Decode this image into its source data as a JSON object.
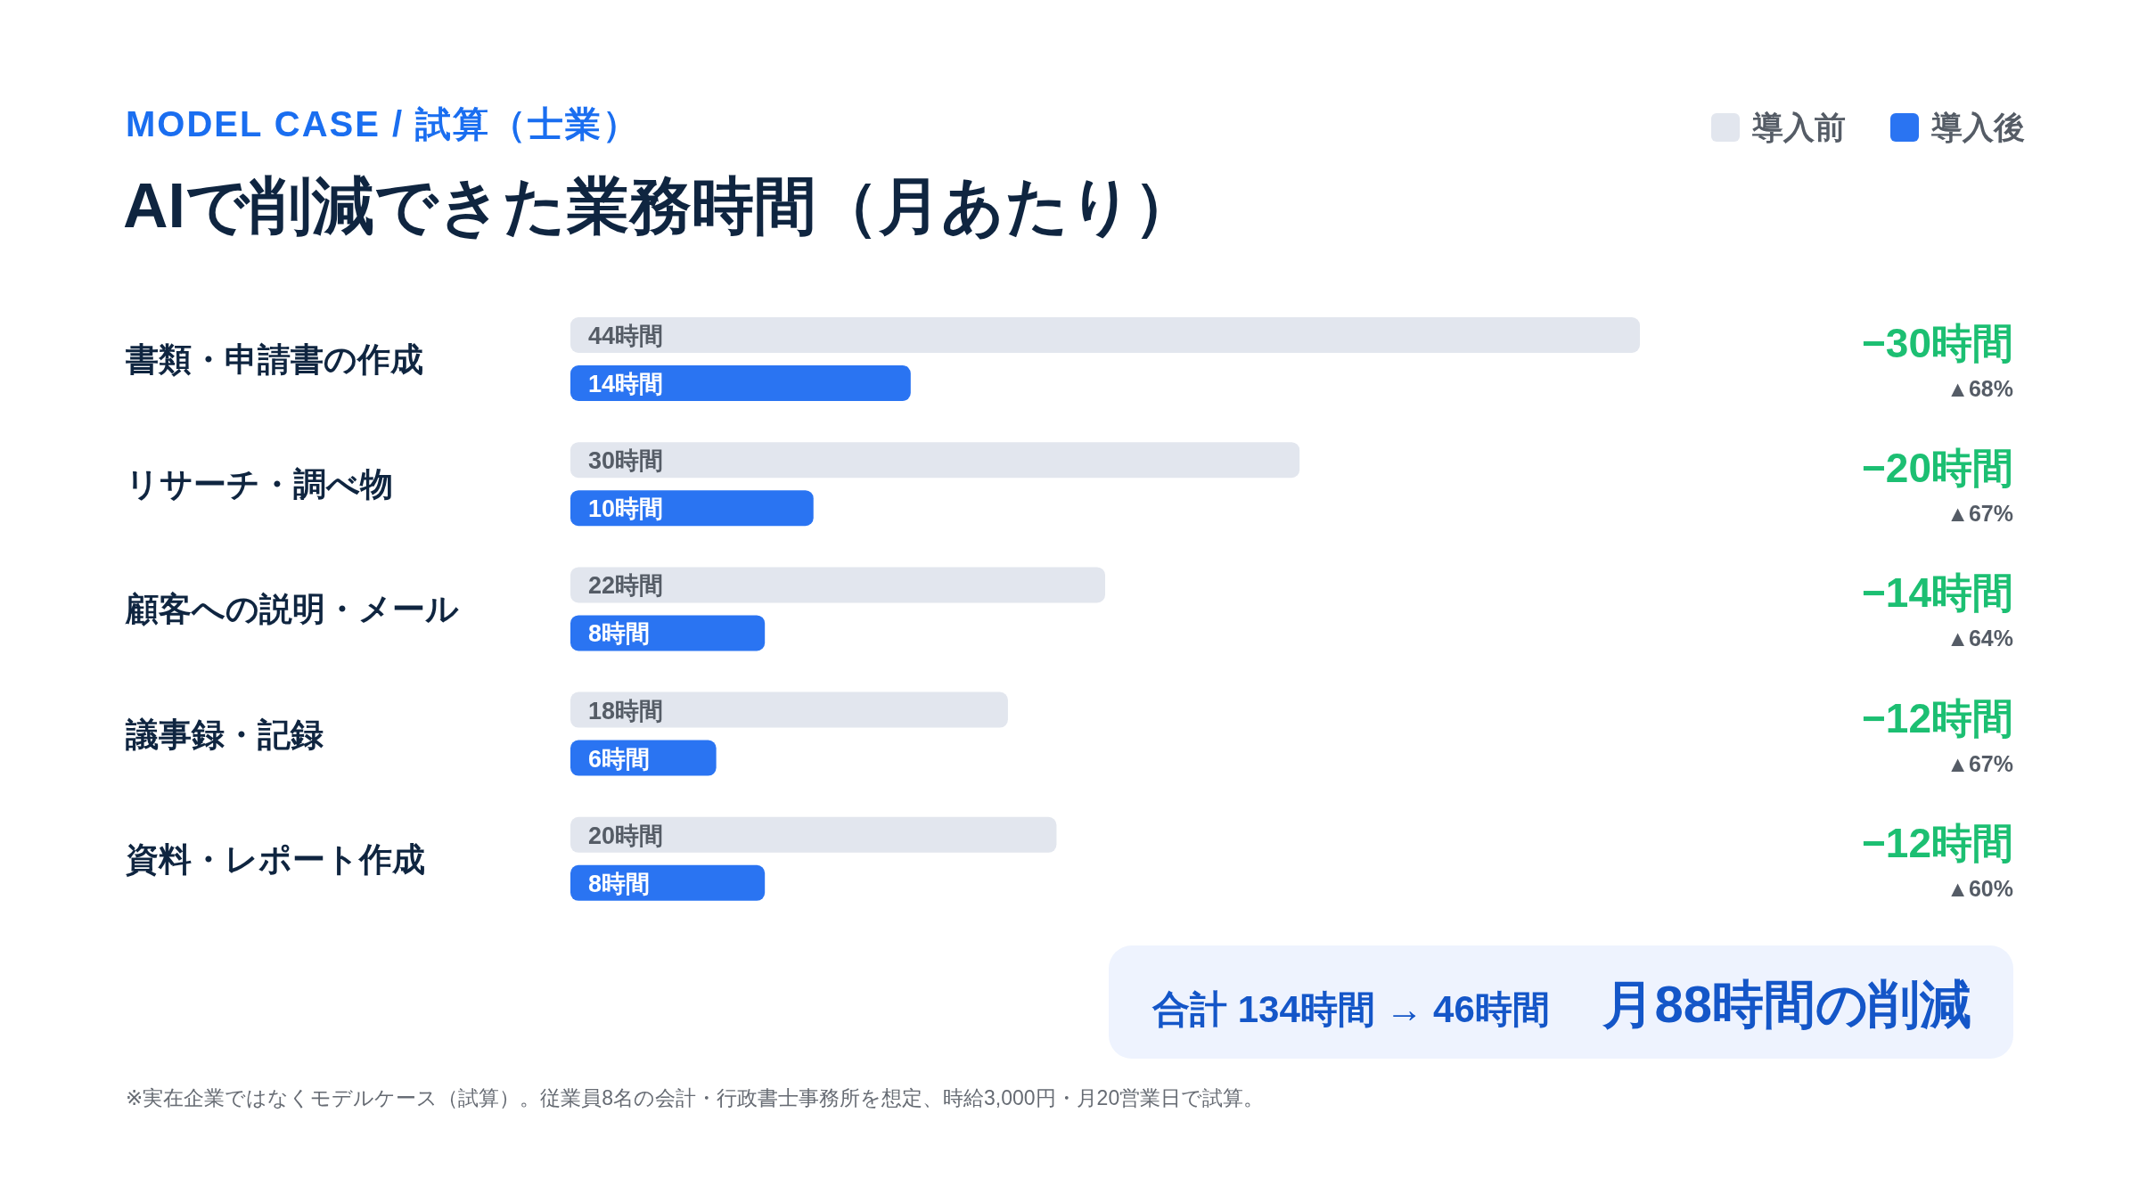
{
  "chart_data": {
    "type": "bar",
    "orientation": "horizontal",
    "subtitle": "MODEL CASE / 試算（士業）",
    "title": "AIで削減できた業務時間（月あたり）",
    "categories": [
      "書類・申請書の作成",
      "リサーチ・調べ物",
      "顧客への説明・メール",
      "議事録・記録",
      "資料・レポート作成"
    ],
    "series": [
      {
        "name": "導入前",
        "color": "#e2e6ee",
        "values": [
          44,
          30,
          22,
          18,
          20
        ],
        "value_labels": [
          "44時間",
          "30時間",
          "22時間",
          "18時間",
          "20時間"
        ]
      },
      {
        "name": "導入後",
        "color": "#2a74f2",
        "values": [
          14,
          10,
          8,
          6,
          8
        ],
        "value_labels": [
          "14時間",
          "10時間",
          "8時間",
          "6時間",
          "8時間"
        ]
      }
    ],
    "legend": "top right",
    "annotations": [
      "−30時間",
      "▲68%",
      "−20時間",
      "▲67%",
      "−14時間",
      "▲64%",
      "−12時間",
      "▲67%",
      "−12時間",
      "▲60%",
      "合計 134時間 → 46時間",
      "月88時間の削減",
      "※実在企業ではなくモデルケース（試算）。従業員8名の会計・行政書士事務所を想定、時給3,000円・月20営業日で試算。"
    ]
  }
}
